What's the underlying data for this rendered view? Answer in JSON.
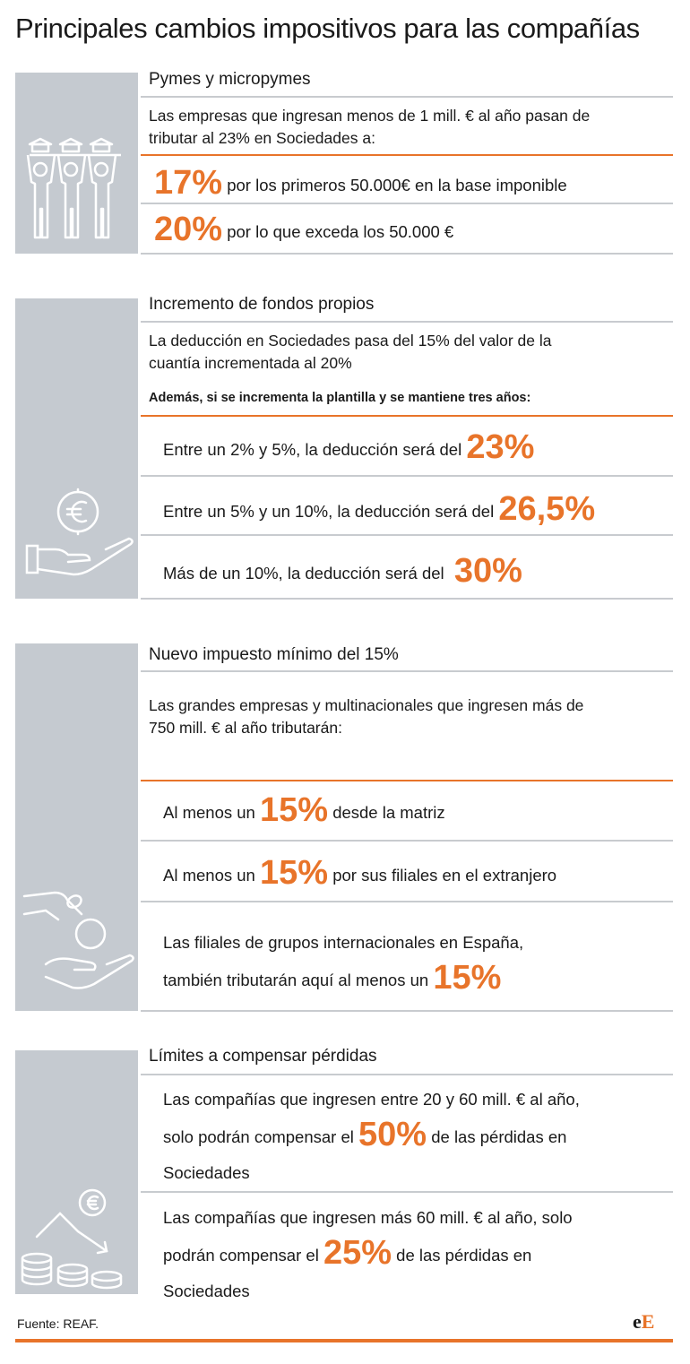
{
  "title": "Principales cambios impositivos para las compañías",
  "s1": {
    "header": "Pymes y micropymes",
    "intro": [
      "Las empresas que ingresan menos de 1 mill. € al año pasan de",
      "tributar al 23% en Sociedades a:"
    ],
    "rows": [
      {
        "pct": "17%",
        "text": "por los primeros 50.000€ en la base imponible"
      },
      {
        "pct": "20%",
        "text": "por lo que exceda los 50.000 €"
      }
    ]
  },
  "s2": {
    "header": "Incremento de fondos propios",
    "intro": [
      "La deducción en Sociedades pasa del 15% del valor de la",
      "cuantía incrementada al 20%"
    ],
    "sub": "Además, si se incrementa la plantilla y se mantiene tres años:",
    "rows": [
      {
        "text": "Entre un 2% y 5%, la deducción será del",
        "pct": "23%"
      },
      {
        "text": "Entre un 5% y un 10%, la deducción será del",
        "pct": "26,5%"
      },
      {
        "text": "Más de un 10%, la deducción será del",
        "pct": "30%"
      }
    ]
  },
  "s3": {
    "header": "Nuevo impuesto mínimo del 15%",
    "intro": [
      "Las grandes empresas y multinacionales que ingresen más de",
      "750 mill. € al año tributarán:"
    ],
    "rows": [
      {
        "pre": "Al menos un",
        "pct": "15%",
        "post": "desde la matriz"
      },
      {
        "pre": "Al menos un",
        "pct": "15%",
        "post": "por sus filiales en el extranjero"
      }
    ],
    "row3": {
      "line1": "Las filiales de grupos internacionales en España,",
      "line2pre": "también tributarán aquí al menos un",
      "pct": "15%"
    }
  },
  "s4": {
    "header": "Límites a compensar pérdidas",
    "row1": {
      "line1": "Las compañías que ingresen entre 20 y 60 mill. € al año,",
      "pre": "solo podrán compensar el",
      "pct": "50%",
      "post": "de las pérdidas en",
      "line3": "Sociedades"
    },
    "row2": {
      "line1": "Las compañías que ingresen más 60 mill. € al año, solo",
      "pre": "podrán compensar el",
      "pct": "25%",
      "post": "de las pérdidas en",
      "line3": "Sociedades"
    }
  },
  "footer": {
    "source": "Fuente: REAF.",
    "logo_small": "e",
    "logo_big": "E"
  },
  "colors": {
    "accent": "#e8742a",
    "panel": "#c5cad0",
    "rule": "#c8cbcf"
  },
  "icons": [
    "workers-icon",
    "euro-hand-icon",
    "coin-hand-icon",
    "coins-loss-icon"
  ]
}
